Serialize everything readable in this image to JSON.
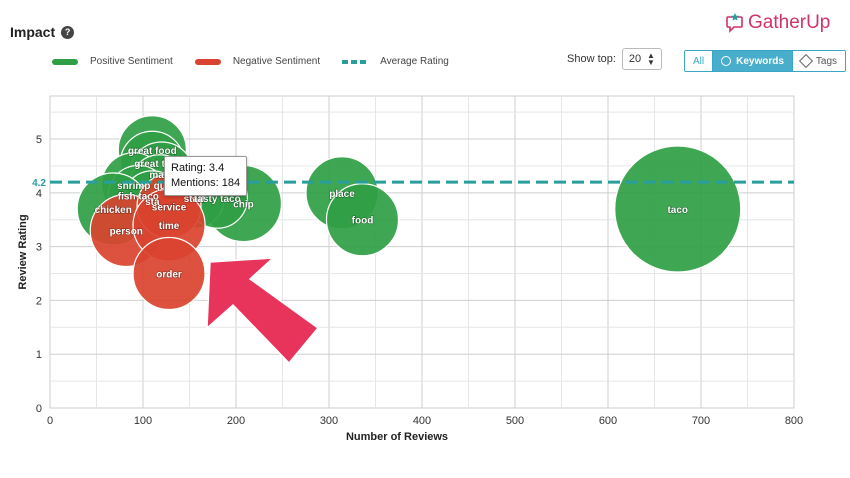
{
  "header": {
    "title": "Impact",
    "help_glyph": "?",
    "logo_text": "GatherUp"
  },
  "legend": {
    "positive": "Positive Sentiment",
    "negative": "Negative Sentiment",
    "average": "Average Rating"
  },
  "controls": {
    "show_top_label": "Show top:",
    "show_top_value": "20",
    "toggle_all": "All",
    "toggle_keywords": "Keywords",
    "toggle_tags": "Tags"
  },
  "tooltip": {
    "rating": "Rating: 3.4",
    "mentions": "Mentions: 184"
  },
  "colors": {
    "positive": "#2f9e44",
    "negative": "#d9432f",
    "average": "#2a9d9d",
    "accent": "#48aecb"
  },
  "chart_data": {
    "type": "scatter",
    "xlabel": "Number of Reviews",
    "ylabel": "Review Rating",
    "xlim": [
      0,
      800
    ],
    "ylim": [
      0,
      5
    ],
    "xticks": [
      0,
      100,
      200,
      300,
      400,
      500,
      600,
      700,
      800
    ],
    "yticks": [
      0,
      1,
      2,
      3,
      4,
      5
    ],
    "grid": true,
    "average_rating": 4.2,
    "average_label": "4.2",
    "bubbles": [
      {
        "label": "taco",
        "x": 675,
        "y": 3.7,
        "sentiment": "positive"
      },
      {
        "label": "chip",
        "x": 208,
        "y": 3.8,
        "sentiment": "positive"
      },
      {
        "label": "place",
        "x": 314,
        "y": 4.0,
        "sentiment": "positive"
      },
      {
        "label": "food",
        "x": 336,
        "y": 3.5,
        "sentiment": "positive"
      },
      {
        "label": "great food",
        "x": 110,
        "y": 4.8,
        "sentiment": "positive"
      },
      {
        "label": "great ta",
        "x": 110,
        "y": 4.55,
        "sentiment": "positive"
      },
      {
        "label": "marg",
        "x": 120,
        "y": 4.35,
        "sentiment": "positive"
      },
      {
        "label": "shrimp",
        "x": 90,
        "y": 4.15,
        "sentiment": "positive"
      },
      {
        "label": "qu",
        "x": 118,
        "y": 4.15,
        "sentiment": "positive"
      },
      {
        "label": "fish taco",
        "x": 95,
        "y": 3.95,
        "sentiment": "positive"
      },
      {
        "label": "sta",
        "x": 110,
        "y": 3.85,
        "sentiment": "positive"
      },
      {
        "label": "chicken",
        "x": 68,
        "y": 3.7,
        "sentiment": "positive"
      },
      {
        "label": "staff",
        "x": 155,
        "y": 3.9,
        "sentiment": "positive"
      },
      {
        "label": "tasty taco",
        "x": 180,
        "y": 3.9,
        "sentiment": "positive"
      },
      {
        "label": "person",
        "x": 82,
        "y": 3.3,
        "sentiment": "negative"
      },
      {
        "label": "service",
        "x": 128,
        "y": 3.75,
        "sentiment": "negative"
      },
      {
        "label": "time",
        "x": 128,
        "y": 3.4,
        "sentiment": "negative"
      },
      {
        "label": "order",
        "x": 128,
        "y": 2.5,
        "sentiment": "negative"
      }
    ]
  }
}
